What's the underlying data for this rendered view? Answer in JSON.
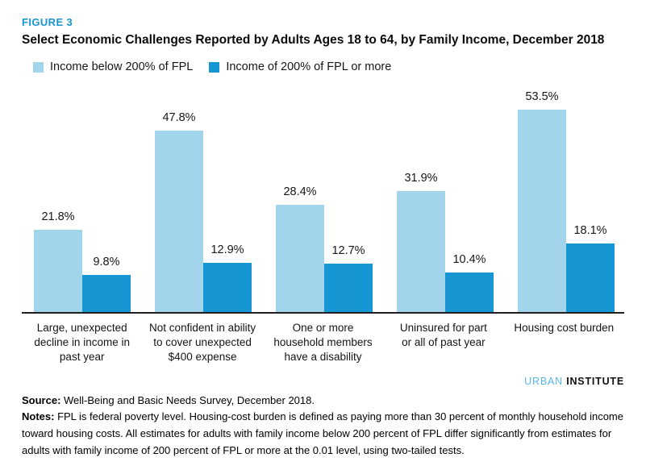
{
  "figure": {
    "label": "FIGURE 3",
    "title": "Select Economic Challenges Reported by Adults Ages 18 to 64, by Family Income, December 2018"
  },
  "legend": [
    {
      "label": "Income below 200% of FPL",
      "color": "#A2D4EC"
    },
    {
      "label": "Income of 200% of FPL or more",
      "color": "#1696D2"
    }
  ],
  "chart_data": {
    "type": "bar",
    "title": "Select Economic Challenges Reported by Adults Ages 18 to 64, by Family Income, December 2018",
    "categories": [
      "Large, unexpected decline in income in past year",
      "Not confident in ability to cover unexpected $400 expense",
      "One or more household members have a disability",
      "Uninsured for part or all of past year",
      "Housing cost burden"
    ],
    "category_lines": [
      [
        "Large, unexpected",
        "decline in income in",
        "past year"
      ],
      [
        "Not confident in ability",
        "to cover unexpected",
        "$400 expense"
      ],
      [
        "One or more",
        "household members",
        "have a disability"
      ],
      [
        "Uninsured for part",
        "or all of past year"
      ],
      [
        "Housing cost burden"
      ]
    ],
    "series": [
      {
        "name": "Income below 200% of FPL",
        "color": "#A2D4EC",
        "values": [
          21.8,
          47.8,
          28.4,
          31.9,
          53.5
        ],
        "labels": [
          "21.8%",
          "47.8%",
          "28.4%",
          "31.9%",
          "53.5%"
        ]
      },
      {
        "name": "Income of 200% of FPL or more",
        "color": "#1696D2",
        "values": [
          9.8,
          12.9,
          12.7,
          10.4,
          18.1
        ],
        "labels": [
          "9.8%",
          "12.9%",
          "12.7%",
          "10.4%",
          "18.1%"
        ]
      }
    ],
    "xlabel": "",
    "ylabel": "",
    "ylim": [
      0,
      55
    ],
    "grid": false,
    "legend_position": "top",
    "value_suffix": "%"
  },
  "footer": {
    "logo_word1": "URBAN",
    "logo_word2": " INSTITUTE",
    "source_label": "Source:",
    "source_text": " Well-Being and Basic Needs Survey, December 2018.",
    "notes_label": "Notes:",
    "notes_text": " FPL is federal poverty level. Housing-cost burden is defined as paying more than 30 percent of monthly household income toward housing costs. All estimates for adults with family income below 200 percent of FPL differ significantly from estimates for adults with family income of 200 percent of FPL or more at the 0.01 level, using two-tailed tests."
  },
  "colors": {
    "accent_blue": "#1696D2",
    "light_blue": "#A2D4EC",
    "axis": "#231F20",
    "figure_label": "#1696D2",
    "logo_urban": "#55B8E8",
    "logo_institute": "#111111"
  }
}
